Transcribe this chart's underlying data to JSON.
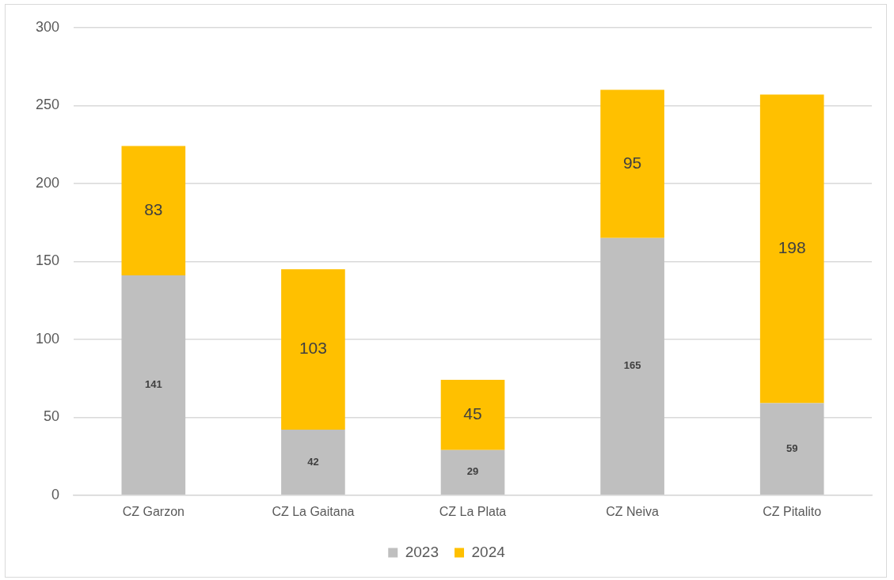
{
  "chart_data": {
    "type": "bar",
    "stacked": true,
    "categories": [
      "CZ Garzon",
      "CZ La Gaitana",
      "CZ La Plata",
      "CZ Neiva",
      "CZ Pitalito"
    ],
    "series": [
      {
        "name": "2023",
        "color": "#bfbfbf",
        "values": [
          141,
          42,
          29,
          165,
          59
        ]
      },
      {
        "name": "2024",
        "color": "#ffc000",
        "values": [
          83,
          103,
          45,
          95,
          198
        ]
      }
    ],
    "ylim": [
      0,
      300
    ],
    "yticks": [
      0,
      50,
      100,
      150,
      200,
      250,
      300
    ],
    "grid": "y",
    "legend": "bottom",
    "data_labels": true
  }
}
